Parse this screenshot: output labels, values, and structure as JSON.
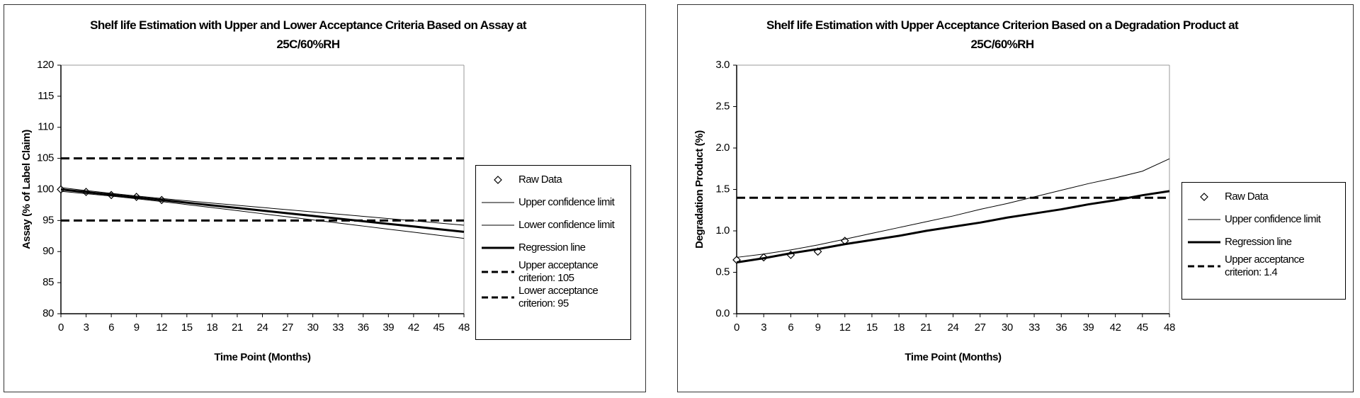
{
  "chart_data": [
    {
      "type": "line",
      "title": "Shelf life Estimation with Upper and Lower Acceptance Criteria Based on Assay at 25C/60%RH",
      "x_label": "Time Point (Months)",
      "y_label": "Assay (% of Label Claim)",
      "x": [
        0,
        3,
        6,
        9,
        12,
        15,
        18,
        21,
        24,
        27,
        30,
        33,
        36,
        39,
        42,
        45,
        48
      ],
      "xlim": [
        0,
        48
      ],
      "xticks": [
        0,
        3,
        6,
        9,
        12,
        15,
        18,
        21,
        24,
        27,
        30,
        33,
        36,
        39,
        42,
        45,
        48
      ],
      "ylim": [
        80,
        120
      ],
      "yticks": [
        80,
        85,
        90,
        95,
        100,
        105,
        110,
        115,
        120
      ],
      "series": [
        {
          "name": "Raw Data",
          "color": "#000000",
          "mode": "markers",
          "values": [
            100.0,
            99.6,
            99.1,
            98.8,
            98.3,
            null,
            null,
            null,
            null,
            null,
            null,
            null,
            null,
            null,
            null,
            null,
            null
          ]
        },
        {
          "name": "Upper confidence limit",
          "color": "#000000",
          "mode": "lines",
          "line_width": 1,
          "values": [
            100.3,
            99.82,
            99.37,
            98.94,
            98.55,
            98.17,
            97.8,
            97.45,
            97.09,
            96.74,
            96.38,
            96.02,
            95.67,
            95.31,
            94.96,
            94.6,
            94.24
          ]
        },
        {
          "name": "Lower confidence limit",
          "color": "#000000",
          "mode": "lines",
          "line_width": 1,
          "values": [
            99.7,
            99.32,
            98.93,
            98.5,
            98.05,
            97.57,
            97.08,
            96.59,
            96.09,
            95.6,
            95.1,
            94.6,
            94.11,
            93.61,
            93.12,
            92.62,
            92.12
          ]
        },
        {
          "name": "Regression line",
          "color": "#000000",
          "mode": "lines",
          "line_width": 3,
          "values": [
            100.0,
            99.57,
            99.15,
            98.72,
            98.3,
            97.87,
            97.44,
            97.02,
            96.59,
            96.17,
            95.74,
            95.31,
            94.89,
            94.46,
            94.04,
            93.61,
            93.18
          ]
        }
      ],
      "hlines": [
        {
          "name": "Upper acceptance criterion: 105",
          "value": 105,
          "color": "#000000",
          "dashed": true
        },
        {
          "name": "Lower acceptance criterion: 95",
          "value": 95,
          "color": "#000000",
          "dashed": true
        }
      ]
    },
    {
      "type": "line",
      "title": "Shelf life Estimation with Upper Acceptance Criterion Based on a Degradation Product at  25C/60%RH",
      "x_label": "Time Point (Months)",
      "y_label": "Degradation Product (%)",
      "x": [
        0,
        3,
        6,
        9,
        12,
        15,
        18,
        21,
        24,
        27,
        30,
        33,
        36,
        39,
        42,
        45,
        48
      ],
      "xlim": [
        0,
        48
      ],
      "xticks": [
        0,
        3,
        6,
        9,
        12,
        15,
        18,
        21,
        24,
        27,
        30,
        33,
        36,
        39,
        42,
        45,
        48
      ],
      "ylim": [
        0,
        3
      ],
      "yticks": [
        {
          "value": 0,
          "label": "0.0"
        },
        0.5,
        {
          "value": 1,
          "label": "1.0"
        },
        1.5,
        {
          "value": 2,
          "label": "2.0"
        },
        2.5,
        {
          "value": 3,
          "label": "3.0"
        }
      ],
      "series": [
        {
          "name": "Raw Data",
          "color": "#000000",
          "mode": "markers",
          "values": [
            0.65,
            0.68,
            0.71,
            0.75,
            0.88,
            null,
            null,
            null,
            null,
            null,
            null,
            null,
            null,
            null,
            null,
            null,
            null
          ]
        },
        {
          "name": "Upper confidence limit",
          "color": "#000000",
          "mode": "lines",
          "line_width": 1,
          "values": [
            0.68,
            0.72,
            0.77,
            0.83,
            0.9,
            0.97,
            1.04,
            1.11,
            1.18,
            1.26,
            1.33,
            1.41,
            1.49,
            1.57,
            1.64,
            1.72,
            1.87
          ]
        },
        {
          "name": "Regression line",
          "color": "#000000",
          "mode": "lines",
          "line_width": 3,
          "values": [
            0.62,
            0.67,
            0.73,
            0.78,
            0.84,
            0.89,
            0.94,
            1.0,
            1.05,
            1.1,
            1.16,
            1.21,
            1.26,
            1.32,
            1.37,
            1.43,
            1.48
          ]
        }
      ],
      "hlines": [
        {
          "name": "Upper acceptance criterion: 1.4",
          "value": 1.4,
          "color": "#000000",
          "dashed": true
        }
      ]
    }
  ]
}
